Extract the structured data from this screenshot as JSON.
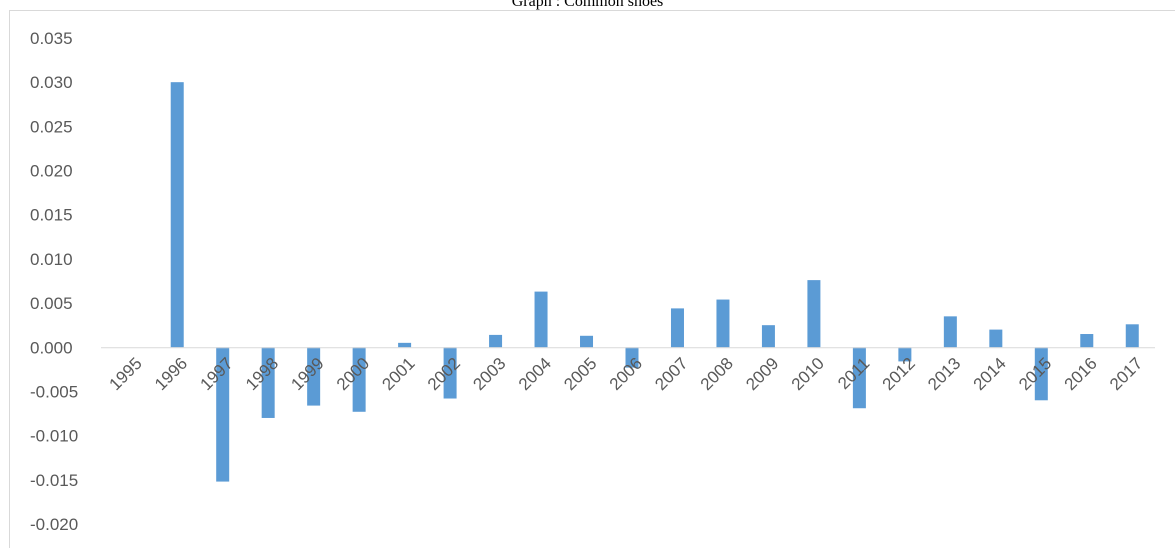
{
  "chart_data": {
    "type": "bar",
    "title": "Graph : Common shoes",
    "xlabel": "",
    "ylabel": "",
    "ylim": [
      -0.02,
      0.035
    ],
    "yticks": [
      "0.035",
      "0.030",
      "0.025",
      "0.020",
      "0.015",
      "0.010",
      "0.005",
      "0.000",
      "-0.005",
      "-0.010",
      "-0.015",
      "-0.020"
    ],
    "grid": false,
    "legend": "none",
    "bar_color": "#5b9bd5",
    "categories": [
      "1995",
      "1996",
      "1997",
      "1998",
      "1999",
      "2000",
      "2001",
      "2002",
      "2003",
      "2004",
      "2005",
      "2006",
      "2007",
      "2008",
      "2009",
      "2010",
      "2011",
      "2012",
      "2013",
      "2014",
      "2015",
      "2016",
      "2017"
    ],
    "values": [
      0.0,
      0.03,
      -0.0152,
      -0.008,
      -0.0066,
      -0.0073,
      0.0005,
      -0.0058,
      0.0014,
      0.0063,
      0.0013,
      -0.0023,
      0.0044,
      0.0054,
      0.0025,
      0.0076,
      -0.0069,
      -0.0016,
      0.0035,
      0.002,
      -0.006,
      0.0015,
      0.0026
    ]
  }
}
